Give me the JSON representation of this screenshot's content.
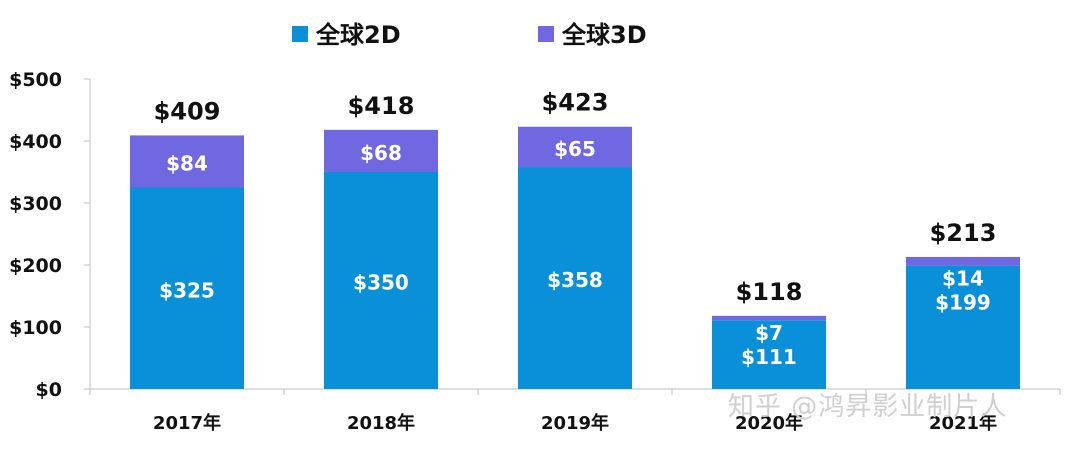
{
  "chart_data": {
    "type": "bar",
    "stacked": true,
    "categories": [
      "2017年",
      "2018年",
      "2019年",
      "2020年",
      "2021年"
    ],
    "series": [
      {
        "name": "全球2D",
        "values": [
          325,
          350,
          358,
          111,
          199
        ],
        "color": "#0a90d8",
        "labels": [
          "$325",
          "$350",
          "$358",
          "$111",
          "$199"
        ]
      },
      {
        "name": "全球3D",
        "values": [
          84,
          68,
          65,
          7,
          14
        ],
        "color": "#7068e0",
        "labels": [
          "$84",
          "$68",
          "$65",
          "$7",
          "$14"
        ]
      }
    ],
    "totals": [
      409,
      418,
      423,
      118,
      213
    ],
    "total_labels": [
      "$409",
      "$418",
      "$423",
      "$118",
      "$213"
    ],
    "ylim": [
      0,
      500
    ],
    "yticks": [
      0,
      100,
      200,
      300,
      400,
      500
    ],
    "ytick_labels": [
      "$0",
      "$100",
      "$200",
      "$300",
      "$400",
      "$500"
    ],
    "legend_position": "top-center",
    "grid": false
  },
  "watermark": "知乎 @鸿昇影业制片人"
}
